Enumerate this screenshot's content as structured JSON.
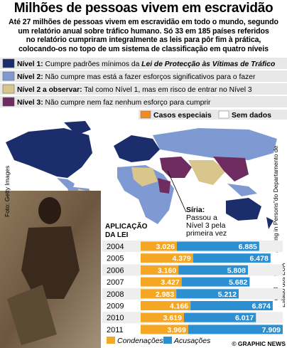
{
  "header": {
    "title": "Milhões de pessoas vivem em escravidão",
    "subtitle_lines": [
      "Até 27 milhões de pessoas vivem em escravidão em todo o mundo, segundo",
      "um relatório anual sobre tráfico humano. Só 33 em 185 países referidos",
      "no relatório cumpriram integralmente as leis para pôr fim à prática,",
      "colocando-os no topo de um sistema de classificação em quatro níveis"
    ]
  },
  "legend_levels": [
    {
      "label": "Nível 1:",
      "text": "Cumpre padrões mínimos da",
      "emphasis": "Lei de Protecção às Vítimas de Tráfico",
      "color": "#1c2d6b"
    },
    {
      "label": "Nível 2:",
      "text": "Não cumpre mas está a fazer esforços significativos para o fazer",
      "color": "#7f9ad2"
    },
    {
      "label": "Nível 2 a observar:",
      "text": "Tal como Nível 1, mas em risco de entrar no Nível 3",
      "color": "#d8c68c"
    },
    {
      "label": "Nível 3:",
      "text": "Não cumpre nem faz nenhum esforço para cumprir",
      "color": "#6e2c60"
    }
  ],
  "legend_special": [
    {
      "label": "Casos especiais",
      "color": "#f08a24"
    },
    {
      "label": "Sem dados",
      "color": "#ffffff"
    }
  ],
  "annotation_lines": [
    "Síria:",
    "Passou a",
    "Nível 3 pela",
    "primeira vez"
  ],
  "photo_credit": "Foto: Getty Images",
  "source_lines": [
    "Fonte: Relatório “Trafficking in Persons”do Departamento de",
    "Estado dos EUA"
  ],
  "credit": "© GRAPHIC NEWS",
  "chart_data": {
    "type": "bar",
    "orientation": "horizontal",
    "stacked": true,
    "title": "APLICAÇÃO DA LEI",
    "categories": [
      "2004",
      "2005",
      "2006",
      "2007",
      "2008",
      "2009",
      "2010",
      "2011"
    ],
    "series": [
      {
        "name": "Condenações",
        "color": "#f5a623",
        "values": [
          3026,
          4379,
          3160,
          3427,
          2983,
          4166,
          3619,
          3969
        ],
        "value_labels": [
          "3.026",
          "4.379",
          "3.160",
          "3.427",
          "2.983",
          "4.166",
          "3.619",
          "3.969"
        ]
      },
      {
        "name": "Acusações",
        "color": "#2b8fd2",
        "values": [
          6885,
          6478,
          5808,
          5682,
          5212,
          6874,
          6017,
          7909
        ],
        "value_labels": [
          "6.885",
          "6.478",
          "5.808",
          "5.682",
          "5.212",
          "6.874",
          "6.017",
          "7.909"
        ]
      }
    ]
  }
}
